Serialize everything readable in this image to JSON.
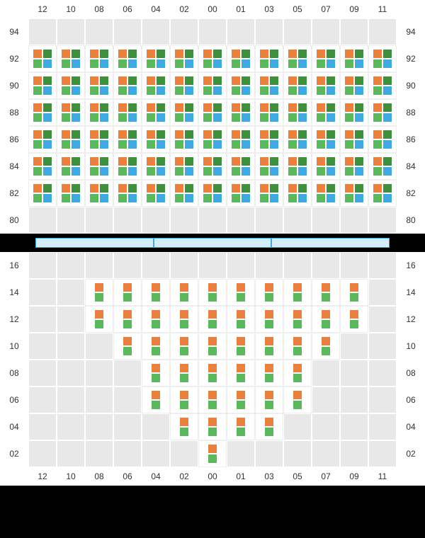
{
  "colors": {
    "orange": "#e9803d",
    "darkgreen": "#3f8f3f",
    "green": "#5cb85c",
    "blue": "#3fa9e0",
    "grid_empty": "#e8e8e8",
    "grid_border": "#ffffff",
    "divider_fill": "#d4edfb",
    "divider_border": "#4aa8e0",
    "bg": "#000000",
    "panel_bg": "#ffffff",
    "text": "#333333"
  },
  "columns": [
    "12",
    "10",
    "08",
    "06",
    "04",
    "02",
    "00",
    "01",
    "03",
    "05",
    "07",
    "09",
    "11"
  ],
  "upper": {
    "rows": [
      {
        "label": "94",
        "cols": [
          0,
          0,
          0,
          0,
          0,
          0,
          0,
          0,
          0,
          0,
          0,
          0,
          0
        ]
      },
      {
        "label": "92",
        "cols": [
          1,
          1,
          1,
          1,
          1,
          1,
          1,
          1,
          1,
          1,
          1,
          1,
          1
        ]
      },
      {
        "label": "90",
        "cols": [
          1,
          1,
          1,
          1,
          1,
          1,
          1,
          1,
          1,
          1,
          1,
          1,
          1
        ]
      },
      {
        "label": "88",
        "cols": [
          1,
          1,
          1,
          1,
          1,
          1,
          1,
          1,
          1,
          1,
          1,
          1,
          1
        ]
      },
      {
        "label": "86",
        "cols": [
          1,
          1,
          1,
          1,
          1,
          1,
          1,
          1,
          1,
          1,
          1,
          1,
          1
        ]
      },
      {
        "label": "84",
        "cols": [
          1,
          1,
          1,
          1,
          1,
          1,
          1,
          1,
          1,
          1,
          1,
          1,
          1
        ]
      },
      {
        "label": "82",
        "cols": [
          1,
          1,
          1,
          1,
          1,
          1,
          1,
          1,
          1,
          1,
          1,
          1,
          1
        ]
      },
      {
        "label": "80",
        "cols": [
          0,
          0,
          0,
          0,
          0,
          0,
          0,
          0,
          0,
          0,
          0,
          0,
          0
        ]
      }
    ],
    "glyph": "quad",
    "glyph_colors": [
      "orange",
      "darkgreen",
      "green",
      "blue"
    ]
  },
  "divider": {
    "segments": 3
  },
  "lower": {
    "rows": [
      {
        "label": "16",
        "cols": [
          0,
          0,
          0,
          0,
          0,
          0,
          0,
          0,
          0,
          0,
          0,
          0,
          0
        ]
      },
      {
        "label": "14",
        "cols": [
          0,
          0,
          1,
          1,
          1,
          1,
          1,
          1,
          1,
          1,
          1,
          1,
          0
        ]
      },
      {
        "label": "12",
        "cols": [
          0,
          0,
          1,
          1,
          1,
          1,
          1,
          1,
          1,
          1,
          1,
          1,
          0
        ]
      },
      {
        "label": "10",
        "cols": [
          0,
          0,
          0,
          1,
          1,
          1,
          1,
          1,
          1,
          1,
          1,
          0,
          0
        ]
      },
      {
        "label": "08",
        "cols": [
          0,
          0,
          0,
          0,
          1,
          1,
          1,
          1,
          1,
          1,
          0,
          0,
          0
        ]
      },
      {
        "label": "06",
        "cols": [
          0,
          0,
          0,
          0,
          1,
          1,
          1,
          1,
          1,
          1,
          0,
          0,
          0
        ]
      },
      {
        "label": "04",
        "cols": [
          0,
          0,
          0,
          0,
          0,
          1,
          1,
          1,
          1,
          0,
          0,
          0,
          0
        ]
      },
      {
        "label": "02",
        "cols": [
          0,
          0,
          0,
          0,
          0,
          0,
          1,
          0,
          0,
          0,
          0,
          0,
          0
        ]
      }
    ],
    "glyph": "duo",
    "glyph_colors": [
      "orange",
      "green"
    ]
  }
}
